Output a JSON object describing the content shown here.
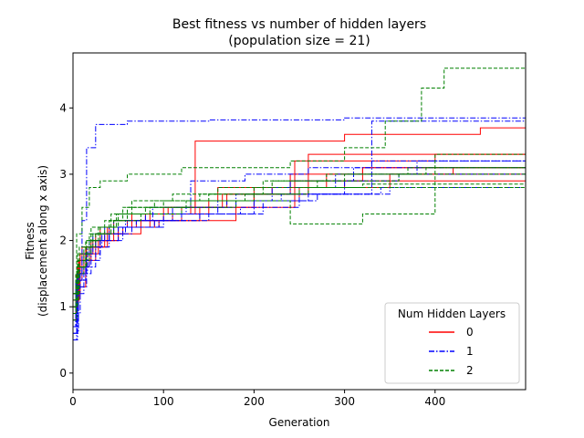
{
  "chart_data": {
    "type": "line",
    "title": "Best fitness vs number of hidden layers",
    "subtitle": "(population size = 21)",
    "xlabel": "Generation",
    "ylabel_line1": "Fitness",
    "ylabel_line2": "(displacement along x axis)",
    "xlim": [
      0,
      500
    ],
    "ylim": [
      -0.25,
      4.83
    ],
    "xticks": [
      "0",
      "100",
      "200",
      "300",
      "400"
    ],
    "xtick_values": [
      0,
      100,
      200,
      300,
      400
    ],
    "yticks": [
      "0",
      "1",
      "2",
      "3",
      "4"
    ],
    "ytick_values": [
      0,
      1,
      2,
      3,
      4
    ],
    "grid": false,
    "legend": {
      "title": "Num Hidden Layers",
      "placement": "lower-right",
      "entries": [
        {
          "label": "0",
          "color": "#ff0000",
          "dash": "solid"
        },
        {
          "label": "1",
          "color": "#0000ff",
          "dash": "dashdot"
        },
        {
          "label": "2",
          "color": "#008000",
          "dash": "dashed"
        }
      ]
    },
    "series": [
      {
        "group": "0",
        "x": [
          0,
          3,
          10,
          25,
          45,
          80,
          130,
          160,
          240,
          320,
          500
        ],
        "y": [
          1.0,
          1.4,
          1.9,
          2.1,
          2.3,
          2.4,
          2.6,
          2.8,
          3.0,
          3.1,
          3.2
        ]
      },
      {
        "group": "0",
        "x": [
          0,
          5,
          15,
          30,
          60,
          100,
          135,
          300,
          450,
          500
        ],
        "y": [
          0.9,
          1.6,
          1.9,
          2.2,
          2.3,
          2.5,
          3.5,
          3.6,
          3.7,
          3.75
        ]
      },
      {
        "group": "0",
        "x": [
          0,
          4,
          12,
          28,
          50,
          90,
          140,
          200,
          260,
          500
        ],
        "y": [
          1.1,
          1.5,
          1.8,
          2.0,
          2.2,
          2.3,
          2.5,
          2.7,
          3.3,
          3.35
        ]
      },
      {
        "group": "0",
        "x": [
          0,
          6,
          20,
          40,
          70,
          110,
          150,
          250,
          350,
          500
        ],
        "y": [
          1.0,
          1.7,
          2.0,
          2.2,
          2.3,
          2.4,
          2.6,
          2.8,
          3.0,
          3.1
        ]
      },
      {
        "group": "0",
        "x": [
          0,
          3,
          14,
          35,
          55,
          95,
          180,
          245,
          400,
          500
        ],
        "y": [
          0.8,
          1.3,
          1.9,
          2.1,
          2.2,
          2.3,
          2.5,
          3.2,
          3.3,
          3.35
        ]
      },
      {
        "group": "0",
        "x": [
          0,
          8,
          22,
          45,
          75,
          120,
          170,
          240,
          320,
          500
        ],
        "y": [
          1.2,
          1.8,
          2.0,
          2.1,
          2.3,
          2.5,
          2.7,
          2.9,
          3.1,
          3.2
        ]
      },
      {
        "group": "0",
        "x": [
          0,
          5,
          18,
          38,
          65,
          105,
          165,
          220,
          300,
          500
        ],
        "y": [
          1.0,
          1.6,
          1.9,
          2.2,
          2.4,
          2.5,
          2.7,
          2.8,
          2.9,
          3.0
        ]
      },
      {
        "group": "0",
        "x": [
          0,
          7,
          25,
          50,
          85,
          135,
          200,
          280,
          420,
          500
        ],
        "y": [
          1.1,
          1.7,
          2.0,
          2.2,
          2.4,
          2.6,
          2.8,
          3.0,
          3.1,
          3.1
        ]
      },
      {
        "group": "1",
        "x": [
          0,
          5,
          10,
          15,
          25,
          60,
          150,
          300,
          420,
          500
        ],
        "y": [
          0.5,
          1.5,
          2.3,
          3.4,
          3.75,
          3.8,
          3.82,
          3.85,
          3.85,
          3.88
        ]
      },
      {
        "group": "1",
        "x": [
          0,
          4,
          12,
          25,
          40,
          70,
          120,
          200,
          260,
          330,
          500
        ],
        "y": [
          0.5,
          1.2,
          1.6,
          2.0,
          2.2,
          2.3,
          2.4,
          2.6,
          2.7,
          3.8,
          3.85
        ]
      },
      {
        "group": "1",
        "x": [
          0,
          6,
          15,
          30,
          55,
          90,
          140,
          185,
          250,
          350,
          500
        ],
        "y": [
          0.6,
          1.3,
          1.7,
          2.0,
          2.2,
          2.3,
          2.4,
          2.5,
          2.7,
          2.8,
          2.85
        ]
      },
      {
        "group": "1",
        "x": [
          0,
          3,
          10,
          22,
          45,
          80,
          125,
          180,
          240,
          310,
          500
        ],
        "y": [
          0.7,
          1.4,
          1.8,
          2.1,
          2.3,
          2.4,
          2.5,
          2.7,
          2.9,
          3.1,
          3.15
        ]
      },
      {
        "group": "1",
        "x": [
          0,
          5,
          20,
          40,
          65,
          100,
          160,
          220,
          290,
          380,
          500
        ],
        "y": [
          0.8,
          1.5,
          1.9,
          2.1,
          2.2,
          2.4,
          2.6,
          2.8,
          3.0,
          3.2,
          3.25
        ]
      },
      {
        "group": "1",
        "x": [
          0,
          8,
          18,
          35,
          60,
          110,
          170,
          230,
          300,
          360,
          500
        ],
        "y": [
          0.9,
          1.6,
          2.0,
          2.2,
          2.3,
          2.5,
          2.6,
          2.7,
          2.9,
          3.0,
          3.1
        ]
      },
      {
        "group": "1",
        "x": [
          0,
          4,
          14,
          30,
          50,
          95,
          150,
          210,
          270,
          340,
          500
        ],
        "y": [
          0.6,
          1.4,
          1.8,
          2.0,
          2.2,
          2.3,
          2.4,
          2.6,
          2.7,
          2.8,
          2.8
        ]
      },
      {
        "group": "1",
        "x": [
          0,
          6,
          16,
          32,
          58,
          88,
          130,
          190,
          260,
          330,
          500
        ],
        "y": [
          0.7,
          1.5,
          1.9,
          2.1,
          2.3,
          2.5,
          2.9,
          3.0,
          3.1,
          3.2,
          3.2
        ]
      },
      {
        "group": "2",
        "x": [
          0,
          4,
          10,
          18,
          30,
          60,
          120,
          240,
          300,
          345,
          385,
          410,
          500
        ],
        "y": [
          1.2,
          2.1,
          2.5,
          2.8,
          2.9,
          3.0,
          3.1,
          3.2,
          3.4,
          3.8,
          4.3,
          4.6,
          4.6
        ]
      },
      {
        "group": "2",
        "x": [
          0,
          5,
          15,
          30,
          50,
          85,
          130,
          200,
          250,
          320,
          500
        ],
        "y": [
          1.0,
          1.6,
          2.0,
          2.2,
          2.4,
          2.5,
          2.6,
          2.7,
          2.8,
          2.85,
          2.85
        ]
      },
      {
        "group": "2",
        "x": [
          0,
          3,
          12,
          25,
          45,
          75,
          120,
          180,
          240,
          320,
          400,
          500
        ],
        "y": [
          0.9,
          1.5,
          1.9,
          2.1,
          2.3,
          2.4,
          2.5,
          2.6,
          2.25,
          2.4,
          3.3,
          3.4
        ]
      },
      {
        "group": "2",
        "x": [
          0,
          6,
          18,
          35,
          55,
          90,
          140,
          200,
          270,
          360,
          500
        ],
        "y": [
          1.1,
          1.7,
          2.1,
          2.3,
          2.5,
          2.6,
          2.7,
          2.8,
          2.9,
          3.0,
          3.0
        ]
      },
      {
        "group": "2",
        "x": [
          0,
          4,
          14,
          28,
          48,
          80,
          125,
          190,
          260,
          340,
          500
        ],
        "y": [
          0.8,
          1.6,
          2.0,
          2.2,
          2.4,
          2.5,
          2.6,
          2.7,
          2.8,
          2.8,
          2.8
        ]
      },
      {
        "group": "2",
        "x": [
          0,
          5,
          20,
          40,
          60,
          100,
          150,
          210,
          280,
          370,
          500
        ],
        "y": [
          1.0,
          1.8,
          2.2,
          2.3,
          2.5,
          2.6,
          2.7,
          2.9,
          3.0,
          3.1,
          3.45
        ]
      },
      {
        "group": "2",
        "x": [
          0,
          7,
          22,
          42,
          65,
          110,
          160,
          220,
          300,
          390,
          500
        ],
        "y": [
          1.2,
          1.9,
          2.1,
          2.4,
          2.6,
          2.7,
          2.8,
          2.9,
          3.0,
          3.1,
          3.15
        ]
      }
    ]
  }
}
